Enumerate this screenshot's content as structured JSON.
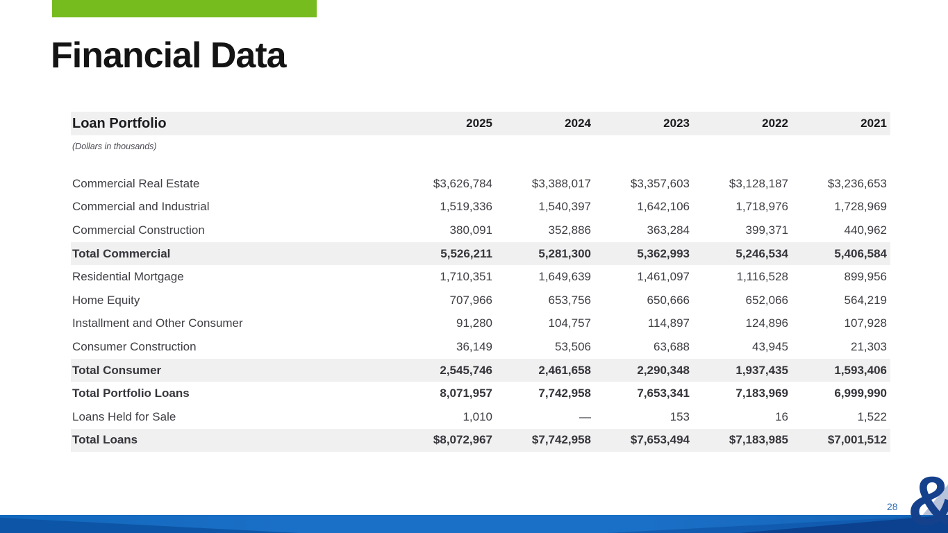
{
  "slide": {
    "title": "Financial Data",
    "page_number": "28",
    "logo_glyph": "&"
  },
  "table": {
    "title": "Loan Portfolio",
    "subtitle": "(Dollars in thousands)",
    "columns": [
      "2025",
      "2024",
      "2023",
      "2022",
      "2021"
    ],
    "rows": [
      {
        "label": "Commercial Real Estate",
        "values": [
          "$3,626,784",
          "$3,388,017",
          "$3,357,603",
          "$3,128,187",
          "$3,236,653"
        ],
        "bold": false,
        "shaded": false
      },
      {
        "label": "Commercial and Industrial",
        "values": [
          "1,519,336",
          "1,540,397",
          "1,642,106",
          "1,718,976",
          "1,728,969"
        ],
        "bold": false,
        "shaded": false
      },
      {
        "label": "Commercial Construction",
        "values": [
          "380,091",
          "352,886",
          "363,284",
          "399,371",
          "440,962"
        ],
        "bold": false,
        "shaded": false
      },
      {
        "label": "Total Commercial",
        "values": [
          "5,526,211",
          "5,281,300",
          "5,362,993",
          "5,246,534",
          "5,406,584"
        ],
        "bold": true,
        "shaded": true
      },
      {
        "label": "Residential Mortgage",
        "values": [
          "1,710,351",
          "1,649,639",
          "1,461,097",
          "1,116,528",
          "899,956"
        ],
        "bold": false,
        "shaded": false
      },
      {
        "label": "Home Equity",
        "values": [
          "707,966",
          "653,756",
          "650,666",
          "652,066",
          "564,219"
        ],
        "bold": false,
        "shaded": false
      },
      {
        "label": "Installment and Other Consumer",
        "values": [
          "91,280",
          "104,757",
          "114,897",
          "124,896",
          "107,928"
        ],
        "bold": false,
        "shaded": false
      },
      {
        "label": "Consumer Construction",
        "values": [
          "36,149",
          "53,506",
          "63,688",
          "43,945",
          "21,303"
        ],
        "bold": false,
        "shaded": false
      },
      {
        "label": "Total Consumer",
        "values": [
          "2,545,746",
          "2,461,658",
          "2,290,348",
          "1,937,435",
          "1,593,406"
        ],
        "bold": true,
        "shaded": true
      },
      {
        "label": "Total Portfolio Loans",
        "values": [
          "8,071,957",
          "7,742,958",
          "7,653,341",
          "7,183,969",
          "6,999,990"
        ],
        "bold": true,
        "shaded": false
      },
      {
        "label": "Loans Held for Sale",
        "values": [
          "1,010",
          "—",
          "153",
          "16",
          "1,522"
        ],
        "bold": false,
        "shaded": false
      },
      {
        "label": "Total Loans",
        "values": [
          "$8,072,967",
          "$7,742,958",
          "$7,653,494",
          "$7,183,985",
          "$7,001,512"
        ],
        "bold": true,
        "shaded": true
      }
    ]
  },
  "colors": {
    "accent_green": "#77BC1F",
    "band_blue": "#1A6FC6",
    "band_blue_dark": "#0B418F",
    "logo_navy": "#15418C",
    "shaded_row": "#F0F0F0",
    "page_number_blue": "#2F6EB5"
  }
}
